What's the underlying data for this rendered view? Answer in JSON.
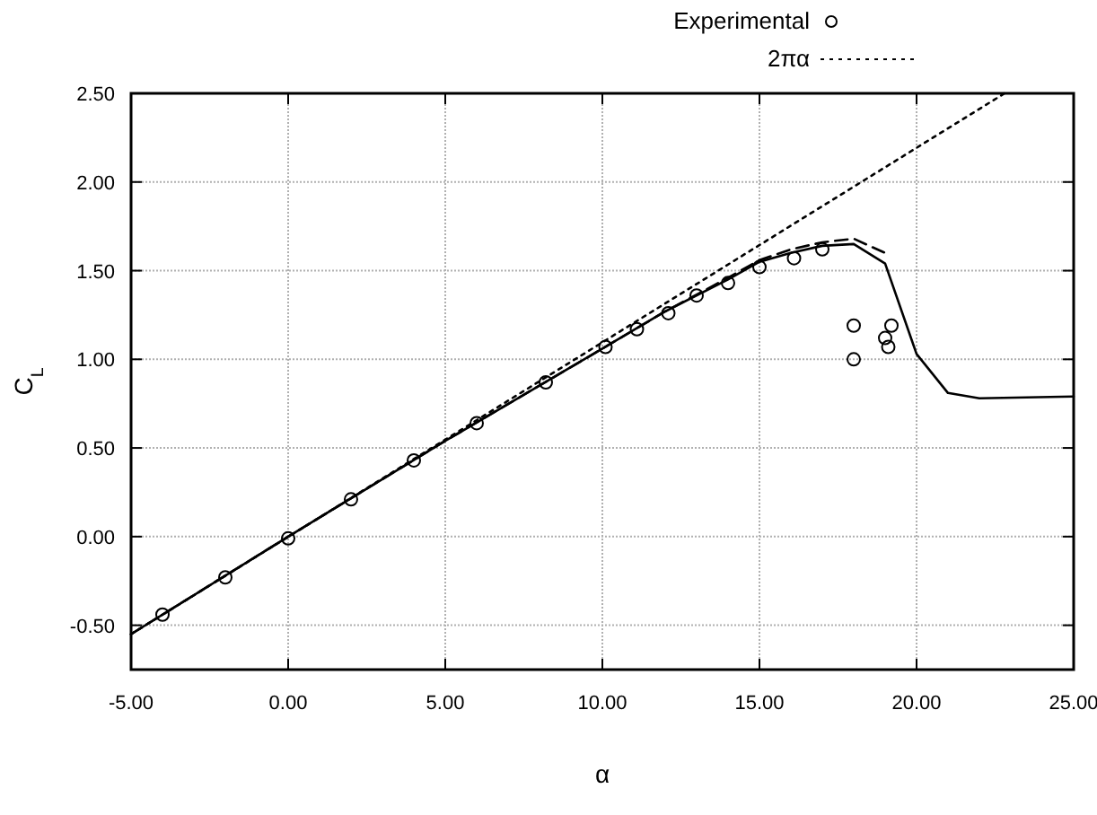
{
  "chart_data": {
    "type": "line",
    "xlabel": "α",
    "ylabel": "C$_{L}$",
    "xlim": [
      -5,
      25
    ],
    "ylim": [
      -0.75,
      2.5
    ],
    "xticks": [
      {
        "value": -5,
        "label": "-5.00"
      },
      {
        "value": 0,
        "label": "0.00"
      },
      {
        "value": 5,
        "label": "5.00"
      },
      {
        "value": 10,
        "label": "10.00"
      },
      {
        "value": 15,
        "label": "15.00"
      },
      {
        "value": 20,
        "label": "20.00"
      },
      {
        "value": 25,
        "label": "25.00"
      }
    ],
    "yticks": [
      {
        "value": -0.5,
        "label": "-0.50"
      },
      {
        "value": 0,
        "label": "0.00"
      },
      {
        "value": 0.5,
        "label": "0.50"
      },
      {
        "value": 1,
        "label": "1.00"
      },
      {
        "value": 1.5,
        "label": "1.50"
      },
      {
        "value": 2,
        "label": "2.00"
      },
      {
        "value": 2.5,
        "label": "2.50"
      }
    ],
    "grid": true,
    "legend": "top right",
    "series": [
      {
        "color": "#000000",
        "line_style": "solid",
        "x": [
          -5,
          0,
          5,
          10,
          12,
          14,
          15,
          16,
          17,
          18,
          19,
          20,
          21,
          22,
          25
        ],
        "values": [
          -0.55,
          0.0,
          0.54,
          1.06,
          1.27,
          1.45,
          1.55,
          1.6,
          1.64,
          1.65,
          1.54,
          1.03,
          0.81,
          0.78,
          0.79
        ]
      },
      {
        "type": "scatter",
        "name": "Experimental",
        "color": "#000000",
        "marker": "circle",
        "x": [
          -4,
          -2,
          0,
          2,
          4,
          6,
          8.2,
          10.1,
          11.1,
          12.1,
          13,
          14,
          15,
          16.1,
          17,
          18,
          18,
          19.2,
          19,
          19.1
        ],
        "values": [
          -0.44,
          -0.23,
          -0.01,
          0.21,
          0.43,
          0.64,
          0.87,
          1.07,
          1.17,
          1.26,
          1.36,
          1.43,
          1.52,
          1.57,
          1.62,
          1.19,
          1.0,
          1.19,
          1.12,
          1.07
        ]
      },
      {
        "color": "#000000",
        "line_style": "dashed",
        "x": [
          -5,
          0,
          5,
          10,
          12,
          14,
          15,
          16,
          17,
          18,
          19
        ],
        "values": [
          -0.55,
          0.0,
          0.54,
          1.06,
          1.27,
          1.46,
          1.56,
          1.62,
          1.66,
          1.68,
          1.6
        ]
      },
      {
        "name": "2πα",
        "color": "#000000",
        "line_style": "dotted",
        "x": [
          -5,
          22.8
        ],
        "values": [
          -0.55,
          2.5
        ]
      }
    ]
  }
}
